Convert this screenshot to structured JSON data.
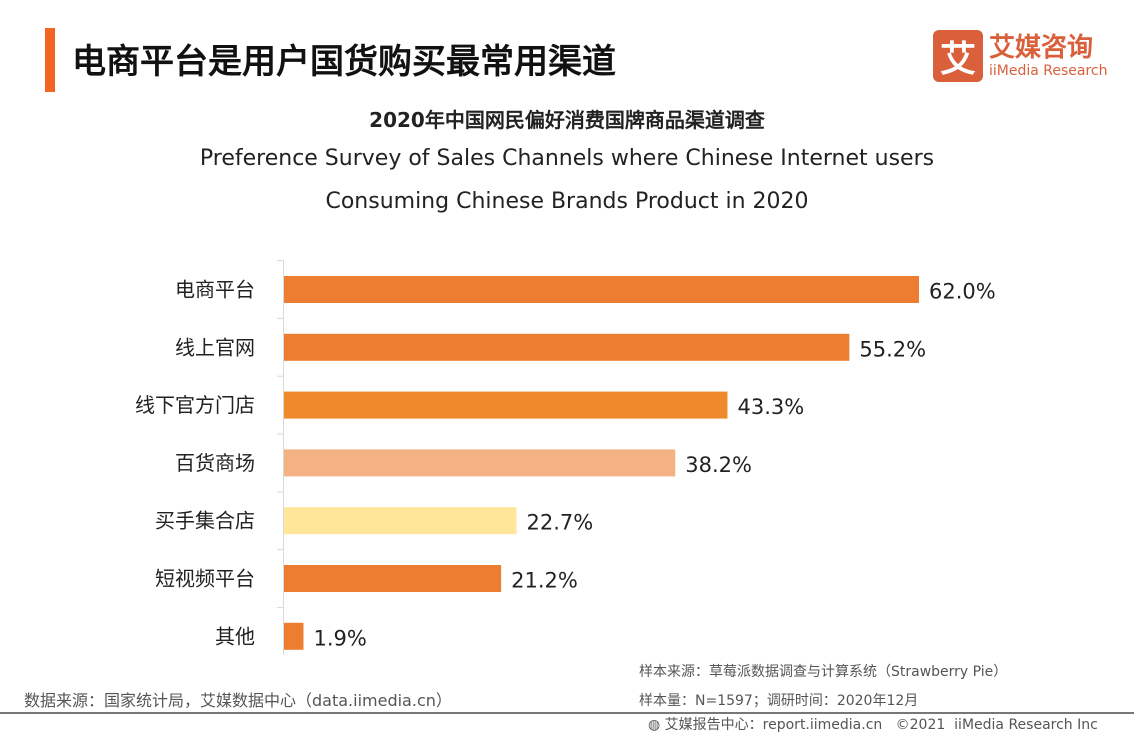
{
  "header": {
    "title": "电商平台是用户国货购买最常用渠道",
    "logo_mark": "艾",
    "logo_cn": "艾媒咨询",
    "logo_en": "iiMedia Research",
    "accent_color": "#F26522"
  },
  "chart_data": {
    "type": "bar",
    "orientation": "horizontal",
    "title": "2020年中国网民偏好消费国牌商品渠道调查",
    "subtitle_line1": "Preference Survey of Sales Channels where Chinese Internet users",
    "subtitle_line2": "Consuming Chinese Brands Product in 2020",
    "categories": [
      "电商平台",
      "线上官网",
      "线下官方门店",
      "百货商场",
      "买手集合店",
      "短视频平台",
      "其他"
    ],
    "values": [
      62.0,
      55.2,
      43.3,
      38.2,
      22.7,
      21.2,
      1.9
    ],
    "labels": [
      "62.0%",
      "55.2%",
      "43.3%",
      "38.2%",
      "22.7%",
      "21.2%",
      "1.9%"
    ],
    "colors": [
      "#ED7D31",
      "#ED7D31",
      "#EF8A2B",
      "#F4B183",
      "#FFE699",
      "#ED7D31",
      "#ED7D31"
    ],
    "unit": "%",
    "grid": false
  },
  "footer": {
    "source": "数据来源：国家统计局，艾媒数据中心（data.iimedia.cn）",
    "sample_source": "样本来源：草莓派数据调查与计算系统（Strawberry Pie）",
    "sample_size": "样本量：N=1597；调研时间：2020年12月",
    "report": "艾媒报告中心：report.iimedia.cn   ©2021  iiMedia Research Inc"
  }
}
